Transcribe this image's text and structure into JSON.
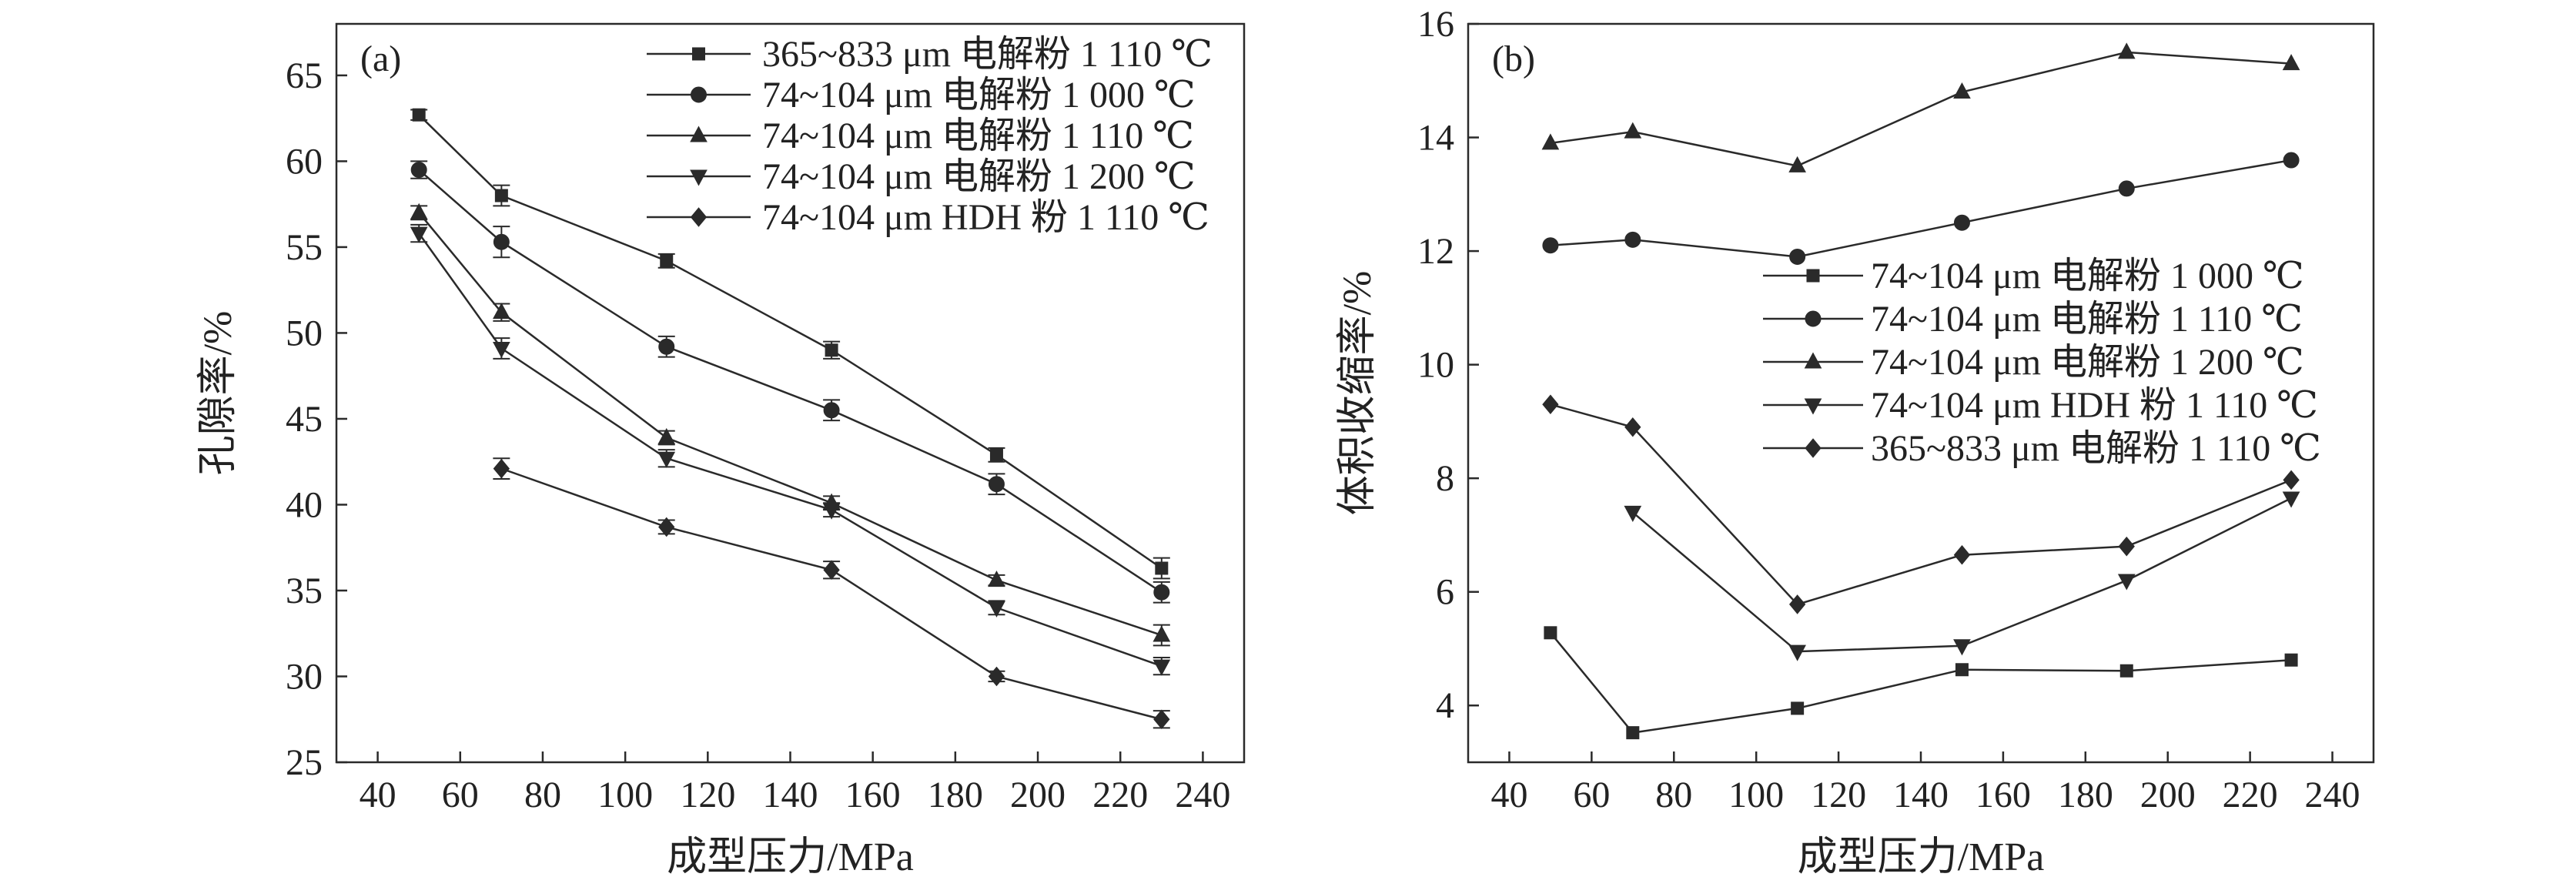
{
  "chart_data": [
    {
      "type": "line",
      "panel_label": "(a)",
      "xlabel": "成型压力/MPa",
      "ylabel": "孔隙率/%",
      "xlim": [
        30,
        250
      ],
      "ylim": [
        25,
        68
      ],
      "xticks": [
        40,
        60,
        80,
        100,
        120,
        140,
        160,
        180,
        200,
        220,
        240
      ],
      "yticks": [
        25,
        30,
        35,
        40,
        45,
        50,
        55,
        60,
        65
      ],
      "grid": false,
      "legend_position": "top-right",
      "series": [
        {
          "name": "365~833 μm 电解粉 1 110 ℃",
          "marker": "square",
          "x": [
            50,
            70,
            110,
            150,
            190,
            230
          ],
          "y": [
            62.7,
            58.0,
            54.2,
            49.0,
            42.9,
            36.3
          ],
          "err": [
            0.3,
            0.6,
            0.4,
            0.5,
            0.4,
            0.6
          ]
        },
        {
          "name": "74~104 μm 电解粉 1 000 ℃",
          "marker": "circle",
          "x": [
            50,
            70,
            110,
            150,
            190,
            230
          ],
          "y": [
            59.5,
            55.3,
            49.2,
            45.5,
            41.2,
            34.9
          ],
          "err": [
            0.5,
            0.9,
            0.6,
            0.6,
            0.6,
            0.6
          ]
        },
        {
          "name": "74~104 μm 电解粉 1 110 ℃",
          "marker": "triangle-up",
          "x": [
            50,
            70,
            110,
            150,
            190,
            230
          ],
          "y": [
            57.0,
            51.2,
            43.9,
            40.1,
            35.6,
            32.4
          ],
          "err": [
            0.4,
            0.5,
            0.4,
            0.4,
            0.3,
            0.6
          ]
        },
        {
          "name": "74~104 μm 电解粉 1 200 ℃",
          "marker": "triangle-down",
          "x": [
            50,
            70,
            110,
            150,
            190,
            230
          ],
          "y": [
            55.8,
            49.1,
            42.7,
            39.7,
            34.0,
            30.6
          ],
          "err": [
            0.5,
            0.6,
            0.5,
            0.4,
            0.4,
            0.5
          ]
        },
        {
          "name": "74~104 μm HDH 粉 1 110 ℃",
          "marker": "diamond",
          "x": [
            70,
            110,
            150,
            190,
            230
          ],
          "y": [
            42.1,
            38.7,
            36.2,
            30.0,
            27.5
          ],
          "err": [
            0.6,
            0.4,
            0.5,
            0.3,
            0.5
          ]
        }
      ]
    },
    {
      "type": "line",
      "panel_label": "(b)",
      "xlabel": "成型压力/MPa",
      "ylabel": "体积收缩率/%",
      "xlim": [
        30,
        250
      ],
      "ylim": [
        3,
        16
      ],
      "xticks": [
        40,
        60,
        80,
        100,
        120,
        140,
        160,
        180,
        200,
        220,
        240
      ],
      "yticks": [
        4,
        6,
        8,
        10,
        12,
        14,
        16
      ],
      "grid": false,
      "legend_position": "right",
      "series": [
        {
          "name": "74~104 μm 电解粉 1 000 ℃",
          "marker": "square",
          "x": [
            50,
            70,
            110,
            150,
            190,
            230
          ],
          "y": [
            5.28,
            3.52,
            3.95,
            4.63,
            4.61,
            4.8
          ]
        },
        {
          "name": "74~104 μm 电解粉 1 110 ℃",
          "marker": "circle",
          "x": [
            50,
            70,
            110,
            150,
            190,
            230
          ],
          "y": [
            12.1,
            12.2,
            11.9,
            12.5,
            13.1,
            13.6
          ]
        },
        {
          "name": "74~104 μm 电解粉 1 200 ℃",
          "marker": "triangle-up",
          "x": [
            50,
            70,
            110,
            150,
            190,
            230
          ],
          "y": [
            13.9,
            14.1,
            13.5,
            14.8,
            15.5,
            15.3
          ]
        },
        {
          "name": "74~104 μm HDH 粉 1 110 ℃",
          "marker": "triangle-down",
          "x": [
            70,
            110,
            150,
            190,
            230
          ],
          "y": [
            7.4,
            4.95,
            5.05,
            6.2,
            7.65
          ]
        },
        {
          "name": "365~833 μm 电解粉 1 110 ℃",
          "marker": "diamond",
          "x": [
            50,
            70,
            110,
            150,
            190,
            230
          ],
          "y": [
            9.3,
            8.9,
            5.78,
            6.65,
            6.8,
            7.97
          ]
        }
      ]
    }
  ]
}
